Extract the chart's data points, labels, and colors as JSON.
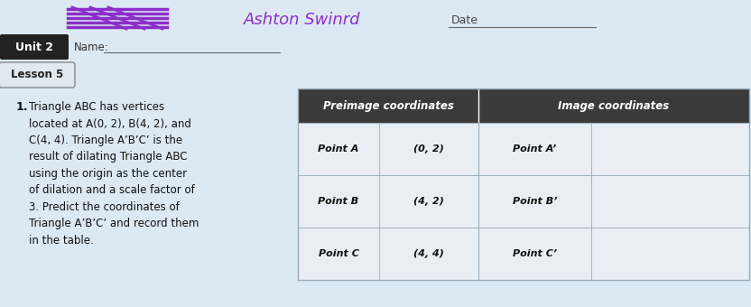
{
  "bg_color": "#c8d8e8",
  "paper_color": "#dce8f2",
  "unit_label": "Unit 2",
  "lesson_label": "Lesson 5",
  "name_text": "Ashton Swinrd",
  "date_label": "Date",
  "problem_number": "1.",
  "problem_text": "Triangle ABC has vertices\nlocated at A(0, 2), B(4, 2), and\nC(4, 4). Triangle A’B’C’ is the\nresult of dilating Triangle ABC\nusing the origin as the center\nof dilation and a scale factor of\n3. Predict the coordinates of\nTriangle A’B’C’ and record them\nin the table.",
  "header_bg": "#3a3a3a",
  "header_text_color": "#ffffff",
  "col1_header": "Preimage coordinates",
  "col2_header": "Image coordinates",
  "rows": [
    {
      "label": "Point A",
      "preimage": "(0, 2)",
      "image_label": "Point A’"
    },
    {
      "label": "Point B",
      "preimage": "(4, 2)",
      "image_label": "Point B’"
    },
    {
      "label": "Point C",
      "preimage": "(4, 4)",
      "image_label": "Point C’"
    }
  ],
  "scribble_color": "#8b2fc8",
  "unit_bg": "#222222",
  "unit_text_color": "#ffffff",
  "row_color_light": "#e8eef4",
  "row_color_dark": "#d8e4ee",
  "grid_color": "#9aacbc"
}
